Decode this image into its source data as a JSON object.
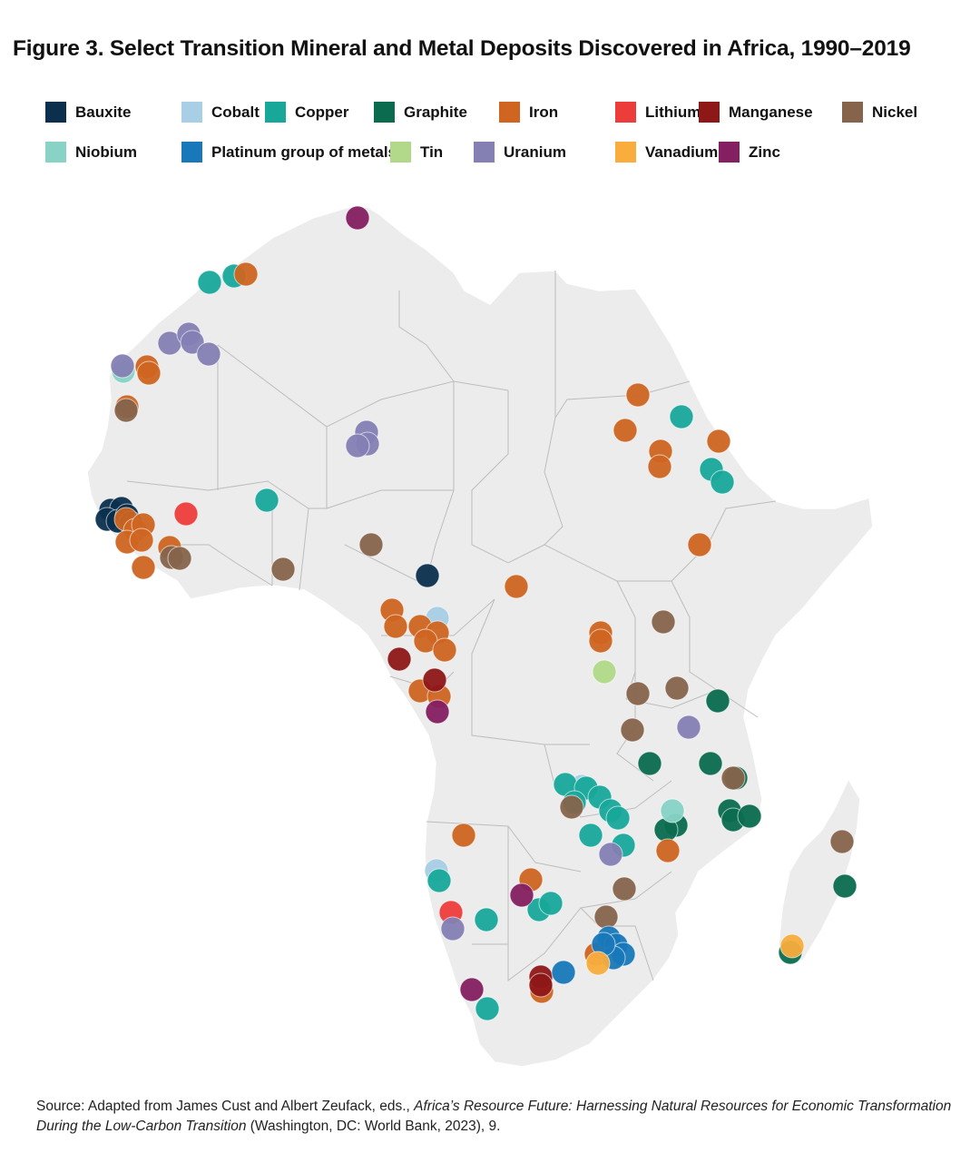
{
  "title": "Figure 3. Select Transition Mineral and Metal Deposits Discovered in Africa, 1990–2019",
  "legend": [
    {
      "label": "Bauxite",
      "color": "#0b2f4d"
    },
    {
      "label": "Cobalt",
      "color": "#a8cfe6"
    },
    {
      "label": "Copper",
      "color": "#17a89a"
    },
    {
      "label": "Graphite",
      "color": "#0b6b4f"
    },
    {
      "label": "Iron",
      "color": "#cf6521"
    },
    {
      "label": "Lithium",
      "color": "#ed3d3b"
    },
    {
      "label": "Manganese",
      "color": "#8e1718"
    },
    {
      "label": "Nickel",
      "color": "#86644c"
    },
    {
      "label": "Niobium",
      "color": "#88d3c6"
    },
    {
      "label": "Platinum group of metals",
      "color": "#1878b9"
    },
    {
      "label": "Tin",
      "color": "#b1d989"
    },
    {
      "label": "Uranium",
      "color": "#8480b4"
    },
    {
      "label": "Vanadium",
      "color": "#f8ad3d"
    },
    {
      "label": "Zinc",
      "color": "#841f61"
    }
  ],
  "source": {
    "prefix": "Source: Adapted from James Cust and Albert Zeufack, eds., ",
    "book": "Africa’s Resource Future: Harnessing Natural Resources for Economic Transformation During the Low-Carbon Transition",
    "suffix": " (Washington, DC: World Bank, 2023), 9."
  },
  "deposits": {
    "Bauxite": [
      [
        122,
        562
      ],
      [
        134,
        560
      ],
      [
        118,
        572
      ],
      [
        130,
        574
      ],
      [
        140,
        568
      ],
      [
        144,
        576
      ],
      [
        471,
        634
      ]
    ],
    "Cobalt": [
      [
        482,
        681
      ],
      [
        641,
        866
      ],
      [
        481,
        959
      ]
    ],
    "Copper": [
      [
        231,
        311
      ],
      [
        258,
        304
      ],
      [
        294,
        551
      ],
      [
        751,
        459
      ],
      [
        784,
        517
      ],
      [
        796,
        531
      ],
      [
        623,
        864
      ],
      [
        646,
        868
      ],
      [
        661,
        878
      ],
      [
        673,
        893
      ],
      [
        681,
        901
      ],
      [
        687,
        931
      ],
      [
        651,
        920
      ],
      [
        633,
        884
      ],
      [
        484,
        970
      ],
      [
        536,
        1013
      ],
      [
        594,
        1002
      ],
      [
        607,
        995
      ],
      [
        537,
        1111
      ]
    ],
    "Graphite": [
      [
        791,
        772
      ],
      [
        716,
        841
      ],
      [
        783,
        841
      ],
      [
        811,
        857
      ],
      [
        804,
        893
      ],
      [
        808,
        903
      ],
      [
        826,
        899
      ],
      [
        745,
        909
      ],
      [
        734,
        914
      ],
      [
        931,
        976
      ],
      [
        871,
        1049
      ]
    ],
    "Iron": [
      [
        271,
        302
      ],
      [
        162,
        404
      ],
      [
        164,
        411
      ],
      [
        140,
        448
      ],
      [
        139,
        572
      ],
      [
        149,
        584
      ],
      [
        158,
        578
      ],
      [
        140,
        597
      ],
      [
        156,
        595
      ],
      [
        187,
        603
      ],
      [
        158,
        625
      ],
      [
        703,
        435
      ],
      [
        689,
        474
      ],
      [
        728,
        497
      ],
      [
        727,
        514
      ],
      [
        792,
        486
      ],
      [
        771,
        600
      ],
      [
        569,
        646
      ],
      [
        432,
        672
      ],
      [
        436,
        690
      ],
      [
        463,
        690
      ],
      [
        482,
        697
      ],
      [
        469,
        706
      ],
      [
        490,
        716
      ],
      [
        463,
        761
      ],
      [
        484,
        767
      ],
      [
        662,
        697
      ],
      [
        662,
        706
      ],
      [
        511,
        920
      ],
      [
        585,
        969
      ],
      [
        736,
        937
      ],
      [
        657,
        1051
      ],
      [
        597,
        1092
      ]
    ],
    "Lithium": [
      [
        205,
        566
      ],
      [
        497,
        1005
      ]
    ],
    "Manganese": [
      [
        440,
        726
      ],
      [
        479,
        749
      ],
      [
        596,
        1076
      ],
      [
        596,
        1085
      ]
    ],
    "Nickel": [
      [
        139,
        452
      ],
      [
        409,
        600
      ],
      [
        312,
        627
      ],
      [
        189,
        614
      ],
      [
        198,
        615
      ],
      [
        731,
        685
      ],
      [
        703,
        764
      ],
      [
        746,
        758
      ],
      [
        697,
        804
      ],
      [
        808,
        857
      ],
      [
        630,
        889
      ],
      [
        688,
        979
      ],
      [
        668,
        1010
      ],
      [
        928,
        927
      ]
    ],
    "Niobium": [
      [
        136,
        409
      ],
      [
        741,
        893
      ]
    ],
    "Platinum group of metals": [
      [
        671,
        1033
      ],
      [
        679,
        1041
      ],
      [
        687,
        1051
      ],
      [
        676,
        1055
      ],
      [
        665,
        1040
      ],
      [
        621,
        1071
      ]
    ],
    "Tin": [
      [
        666,
        740
      ]
    ],
    "Uranium": [
      [
        135,
        403
      ],
      [
        187,
        378
      ],
      [
        208,
        368
      ],
      [
        212,
        377
      ],
      [
        230,
        390
      ],
      [
        404,
        476
      ],
      [
        405,
        489
      ],
      [
        394,
        491
      ],
      [
        759,
        801
      ],
      [
        673,
        941
      ],
      [
        499,
        1023
      ]
    ],
    "Vanadium": [
      [
        659,
        1061
      ],
      [
        873,
        1042
      ]
    ],
    "Zinc": [
      [
        394,
        240
      ],
      [
        482,
        784
      ],
      [
        575,
        986
      ],
      [
        520,
        1090
      ]
    ]
  }
}
